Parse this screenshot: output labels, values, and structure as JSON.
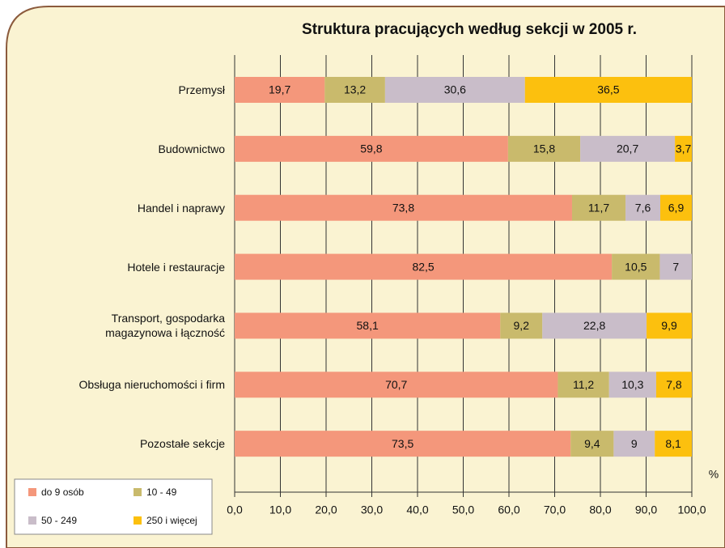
{
  "chart_data": {
    "type": "stacked_barh",
    "title": "Struktura pracujących według sekcji w 2005 r.",
    "x_label": "%",
    "categories": [
      "Przemysł",
      "Budownictwo",
      "Handel i naprawy",
      "Hotele i restauracje",
      "Transport, gospodarka\nmagazynowa i łączność",
      "Obsługa nieruchomości i firm",
      "Pozostałe sekcje"
    ],
    "series": [
      {
        "name": "do 9 osób",
        "color": "#f4977b",
        "values": [
          19.7,
          59.8,
          73.8,
          82.5,
          58.1,
          70.7,
          73.5
        ],
        "value_labels": [
          "19,7",
          "59,8",
          "73,8",
          "82,5",
          "58,1",
          "70,7",
          "73,5"
        ]
      },
      {
        "name": "10 - 49",
        "color": "#c9ba6c",
        "values": [
          13.2,
          15.8,
          11.7,
          10.5,
          9.2,
          11.2,
          9.4
        ],
        "value_labels": [
          "13,2",
          "15,8",
          "11,7",
          "10,5",
          "9,2",
          "11,2",
          "9,4"
        ]
      },
      {
        "name": "50 - 249",
        "color": "#c9bdc9",
        "values": [
          30.6,
          20.7,
          7.6,
          7,
          22.8,
          10.3,
          9
        ],
        "value_labels": [
          "30,6",
          "20,7",
          "7,6",
          "7",
          "22,8",
          "10,3",
          "9"
        ]
      },
      {
        "name": "250 i więcej",
        "color": "#fcc00e",
        "values": [
          36.5,
          3.7,
          6.9,
          null,
          9.9,
          7.8,
          8.1
        ],
        "value_labels": [
          "36,5",
          "3,7",
          "6,9",
          null,
          "9,9",
          "7,8",
          "8,1"
        ]
      }
    ],
    "xlim": [
      0,
      100
    ],
    "xticks": [
      {
        "value": 0,
        "label": "0,0"
      },
      {
        "value": 10,
        "label": "10,0"
      },
      {
        "value": 20,
        "label": "20,0"
      },
      {
        "value": 30,
        "label": "30,0"
      },
      {
        "value": 40,
        "label": "40,0"
      },
      {
        "value": 50,
        "label": "50,0"
      },
      {
        "value": 60,
        "label": "60,0"
      },
      {
        "value": 70,
        "label": "70,0"
      },
      {
        "value": 80,
        "label": "80,0"
      },
      {
        "value": 90,
        "label": "90,0"
      },
      {
        "value": {
          "value": 100,
          "label": "100,0"
        },
        "label": "100,0"
      }
    ],
    "grid": true,
    "legend": "lower left"
  }
}
